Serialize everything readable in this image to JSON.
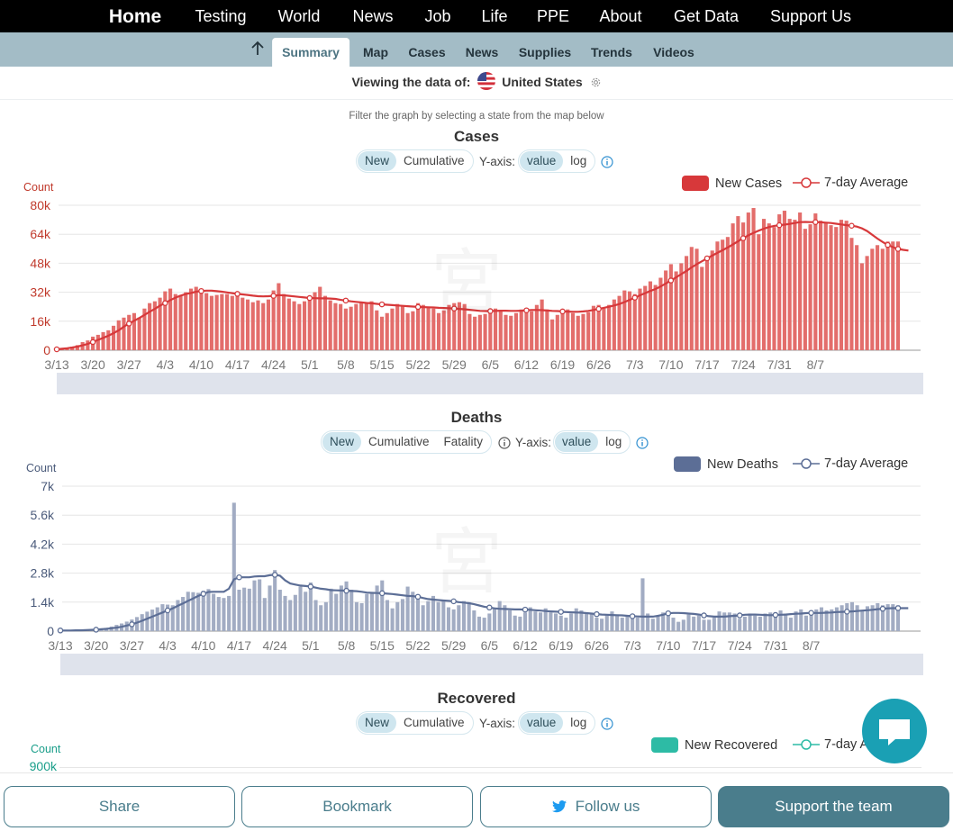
{
  "topnav": {
    "home": "Home",
    "testing": "Testing",
    "world": "World",
    "news": "News",
    "job": "Job",
    "life": "Life",
    "ppe": "PPE",
    "about": "About",
    "get_data": "Get Data",
    "support": "Support Us"
  },
  "subnav": {
    "summary": "Summary",
    "map": "Map",
    "cases": "Cases",
    "news": "News",
    "supplies": "Supplies",
    "trends": "Trends",
    "videos": "Videos"
  },
  "viewing": {
    "prefix": "Viewing the data of:",
    "region": "United States"
  },
  "filter_hint": "Filter the graph by selecting a state from the map below",
  "common": {
    "yaxis_label": "Y-axis:",
    "opt_new": "New",
    "opt_cumulative": "Cumulative",
    "opt_fatality": "Fatality",
    "opt_value": "value",
    "opt_log": "log",
    "count_label": "Count",
    "avg_legend": "7-day Average"
  },
  "cases": {
    "title": "Cases",
    "legend_bar": "New Cases",
    "color": "#e36d6b",
    "line_color": "#d7383a"
  },
  "deaths": {
    "title": "Deaths",
    "legend_bar": "New Deaths",
    "color": "#a2acc3",
    "line_color": "#5c6e96"
  },
  "recovered": {
    "title": "Recovered",
    "legend_bar": "New Recovered",
    "color": "#2dbba5",
    "top_tick": "900k"
  },
  "bottom": {
    "share": "Share",
    "bookmark": "Bookmark",
    "follow": "Follow us",
    "support": "Support the team"
  },
  "chart_data": [
    {
      "type": "bar",
      "title": "Cases",
      "ylabel": "Count",
      "ylim": [
        0,
        80000
      ],
      "yticks": [
        "0",
        "16k",
        "32k",
        "48k",
        "64k",
        "80k"
      ],
      "xticks": [
        "3/13",
        "3/20",
        "3/27",
        "4/3",
        "4/10",
        "4/17",
        "4/24",
        "5/1",
        "5/8",
        "5/15",
        "5/22",
        "5/29",
        "6/5",
        "6/12",
        "6/19",
        "6/26",
        "7/3",
        "7/10",
        "7/17",
        "7/24",
        "7/31",
        "8/7"
      ],
      "x_start": "3/13",
      "series": [
        {
          "name": "New Cases",
          "values": [
            500,
            900,
            1200,
            2000,
            2800,
            4500,
            5400,
            7500,
            8500,
            10000,
            11000,
            13500,
            16500,
            18000,
            19500,
            20500,
            18000,
            23000,
            26000,
            27000,
            29000,
            32500,
            34000,
            31000,
            30500,
            32000,
            34000,
            35000,
            34000,
            31500,
            30000,
            30500,
            31000,
            31000,
            30000,
            31500,
            29000,
            28000,
            26500,
            27500,
            26000,
            28000,
            33000,
            37000,
            31000,
            28500,
            27000,
            25500,
            27000,
            30000,
            32000,
            35000,
            30000,
            27500,
            26000,
            25500,
            23000,
            24000,
            25500,
            26000,
            26000,
            27000,
            22000,
            18500,
            20500,
            23000,
            25500,
            24500,
            20500,
            21500,
            26000,
            25000,
            24000,
            23000,
            20500,
            22000,
            25000,
            26000,
            26500,
            25500,
            20000,
            18500,
            19500,
            20000,
            21500,
            23000,
            22000,
            19500,
            19000,
            20500,
            22500,
            22000,
            21500,
            25000,
            28000,
            22500,
            17000,
            19500,
            21000,
            22500,
            20500,
            19000,
            20000,
            21000,
            24500,
            25000,
            23000,
            25000,
            28000,
            30000,
            33000,
            32500,
            31000,
            34000,
            35500,
            38000,
            36000,
            40000,
            44000,
            47500,
            43500,
            48000,
            52000,
            57000,
            56000,
            46000,
            51000,
            55000,
            60000,
            61000,
            62500,
            70000,
            74000,
            70500,
            76000,
            78500,
            64000,
            72500,
            70000,
            68000,
            75000,
            77000,
            72500,
            72000,
            76000,
            67000,
            69500,
            75500,
            71500,
            70500,
            69000,
            68000,
            72000,
            71500,
            62000,
            58000,
            48000,
            52000,
            56000,
            58000,
            56000,
            60000,
            60000,
            60000
          ]
        },
        {
          "name": "7-day Average",
          "values": [
            500,
            800,
            1100,
            1500,
            2000,
            2700,
            3500,
            4500,
            5700,
            6800,
            8000,
            9400,
            11000,
            13000,
            14700,
            16300,
            17800,
            19500,
            21200,
            22800,
            24600,
            26000,
            27700,
            29000,
            30100,
            31000,
            31600,
            32300,
            32700,
            32900,
            32900,
            32600,
            32300,
            31900,
            31500,
            31100,
            30800,
            30500,
            30100,
            29800,
            29700,
            29800,
            30000,
            30400,
            30300,
            30000,
            29700,
            29400,
            29100,
            28800,
            28700,
            28600,
            28600,
            28500,
            28300,
            27800,
            27400,
            27000,
            26700,
            26400,
            26100,
            25900,
            25600,
            25300,
            25100,
            24900,
            24700,
            24500,
            24300,
            24100,
            23900,
            23800,
            23700,
            23600,
            23400,
            23300,
            23200,
            23000,
            22800,
            22600,
            22300,
            22000,
            21700,
            21600,
            21600,
            21700,
            21800,
            21800,
            21700,
            21700,
            21800,
            22000,
            22200,
            22200,
            22100,
            21900,
            21700,
            21600,
            21400,
            21300,
            21200,
            21200,
            21400,
            21700,
            22200,
            22800,
            23400,
            24000,
            24700,
            25500,
            26600,
            27800,
            29000,
            30300,
            31500,
            32700,
            33800,
            35200,
            36800,
            38500,
            40200,
            42000,
            43800,
            45700,
            47500,
            49100,
            50700,
            52200,
            53700,
            55200,
            56700,
            58400,
            60100,
            61800,
            63400,
            64800,
            66000,
            67100,
            68000,
            68600,
            69000,
            69300,
            69700,
            70200,
            70700,
            70800,
            70700,
            70700,
            70600,
            70400,
            70200,
            69800,
            69400,
            69000,
            68700,
            68200,
            67300,
            65800,
            63700,
            61600,
            59800,
            58100,
            56900,
            55900,
            55400,
            55000
          ]
        }
      ]
    },
    {
      "type": "bar",
      "title": "Deaths",
      "ylabel": "Count",
      "ylim": [
        0,
        7000
      ],
      "yticks": [
        "0",
        "1.4k",
        "2.8k",
        "4.2k",
        "5.6k",
        "7k"
      ],
      "xticks": [
        "3/13",
        "3/20",
        "3/27",
        "4/3",
        "4/10",
        "4/17",
        "4/24",
        "5/1",
        "5/8",
        "5/15",
        "5/22",
        "5/29",
        "6/5",
        "6/12",
        "6/19",
        "6/26",
        "7/3",
        "7/10",
        "7/17",
        "7/24",
        "7/31",
        "8/7"
      ],
      "x_start": "3/13",
      "series": [
        {
          "name": "New Deaths",
          "values": [
            20,
            20,
            30,
            40,
            50,
            60,
            80,
            100,
            120,
            160,
            220,
            300,
            370,
            460,
            560,
            680,
            820,
            940,
            1040,
            1150,
            1300,
            1280,
            1250,
            1500,
            1650,
            1900,
            1880,
            1850,
            1950,
            2030,
            1800,
            1650,
            1600,
            1700,
            6200,
            2000,
            2100,
            2050,
            2450,
            2500,
            1600,
            2200,
            2950,
            2000,
            1700,
            1500,
            1750,
            2150,
            1900,
            2350,
            1500,
            1250,
            1400,
            2050,
            1800,
            2200,
            2400,
            2000,
            1400,
            1350,
            1800,
            1850,
            2200,
            2450,
            1500,
            1100,
            1400,
            1550,
            2150,
            1900,
            1650,
            1250,
            1450,
            1700,
            1400,
            1450,
            1150,
            1050,
            1250,
            1450,
            1400,
            1000,
            700,
            650,
            850,
            1100,
            1450,
            1250,
            1000,
            750,
            700,
            900,
            1150,
            950,
            900,
            1100,
            900,
            850,
            750,
            650,
            850,
            1100,
            1000,
            900,
            850,
            650,
            600,
            800,
            950,
            800,
            650,
            700,
            600,
            650,
            2550,
            850,
            600,
            700,
            900,
            750,
            650,
            450,
            550,
            800,
            700,
            750,
            550,
            550,
            650,
            950,
            900,
            900,
            850,
            600,
            700,
            850,
            750,
            700,
            850,
            900,
            900,
            1000,
            850,
            650,
            950,
            1050,
            750,
            900,
            1050,
            1150,
            1000,
            1050,
            1150,
            1250,
            1350,
            1400,
            1250,
            1000,
            1200,
            1250,
            1350,
            1250,
            1300,
            1300,
            1250
          ]
        },
        {
          "name": "7-day Average",
          "values": [
            30,
            30,
            30,
            40,
            40,
            50,
            60,
            70,
            90,
            110,
            140,
            170,
            210,
            270,
            330,
            410,
            500,
            600,
            700,
            800,
            900,
            1000,
            1100,
            1220,
            1340,
            1460,
            1580,
            1700,
            1800,
            1890,
            1900,
            1900,
            1900,
            2050,
            2500,
            2600,
            2600,
            2600,
            2640,
            2650,
            2650,
            2700,
            2720,
            2680,
            2450,
            2300,
            2250,
            2200,
            2180,
            2150,
            2100,
            2050,
            2020,
            1980,
            1970,
            1960,
            1950,
            1940,
            1930,
            1900,
            1860,
            1850,
            1840,
            1830,
            1810,
            1790,
            1760,
            1730,
            1700,
            1690,
            1660,
            1600,
            1550,
            1520,
            1500,
            1480,
            1460,
            1440,
            1400,
            1380,
            1350,
            1300,
            1240,
            1180,
            1140,
            1100,
            1080,
            1070,
            1060,
            1050,
            1050,
            1040,
            1030,
            1010,
            990,
            970,
            950,
            940,
            930,
            920,
            910,
            900,
            890,
            870,
            850,
            820,
            800,
            790,
            780,
            770,
            760,
            740,
            720,
            710,
            700,
            700,
            700,
            740,
            790,
            860,
            880,
            880,
            870,
            850,
            830,
            800,
            760,
            720,
            700,
            700,
            700,
            720,
            740,
            760,
            790,
            800,
            800,
            790,
            780,
            770,
            780,
            790,
            800,
            820,
            840,
            850,
            870,
            880,
            880,
            880,
            890,
            900,
            920,
            930,
            940,
            950,
            970,
            990,
            1010,
            1030,
            1060,
            1080,
            1100,
            1110,
            1110,
            1110,
            1110
          ]
        }
      ]
    }
  ]
}
